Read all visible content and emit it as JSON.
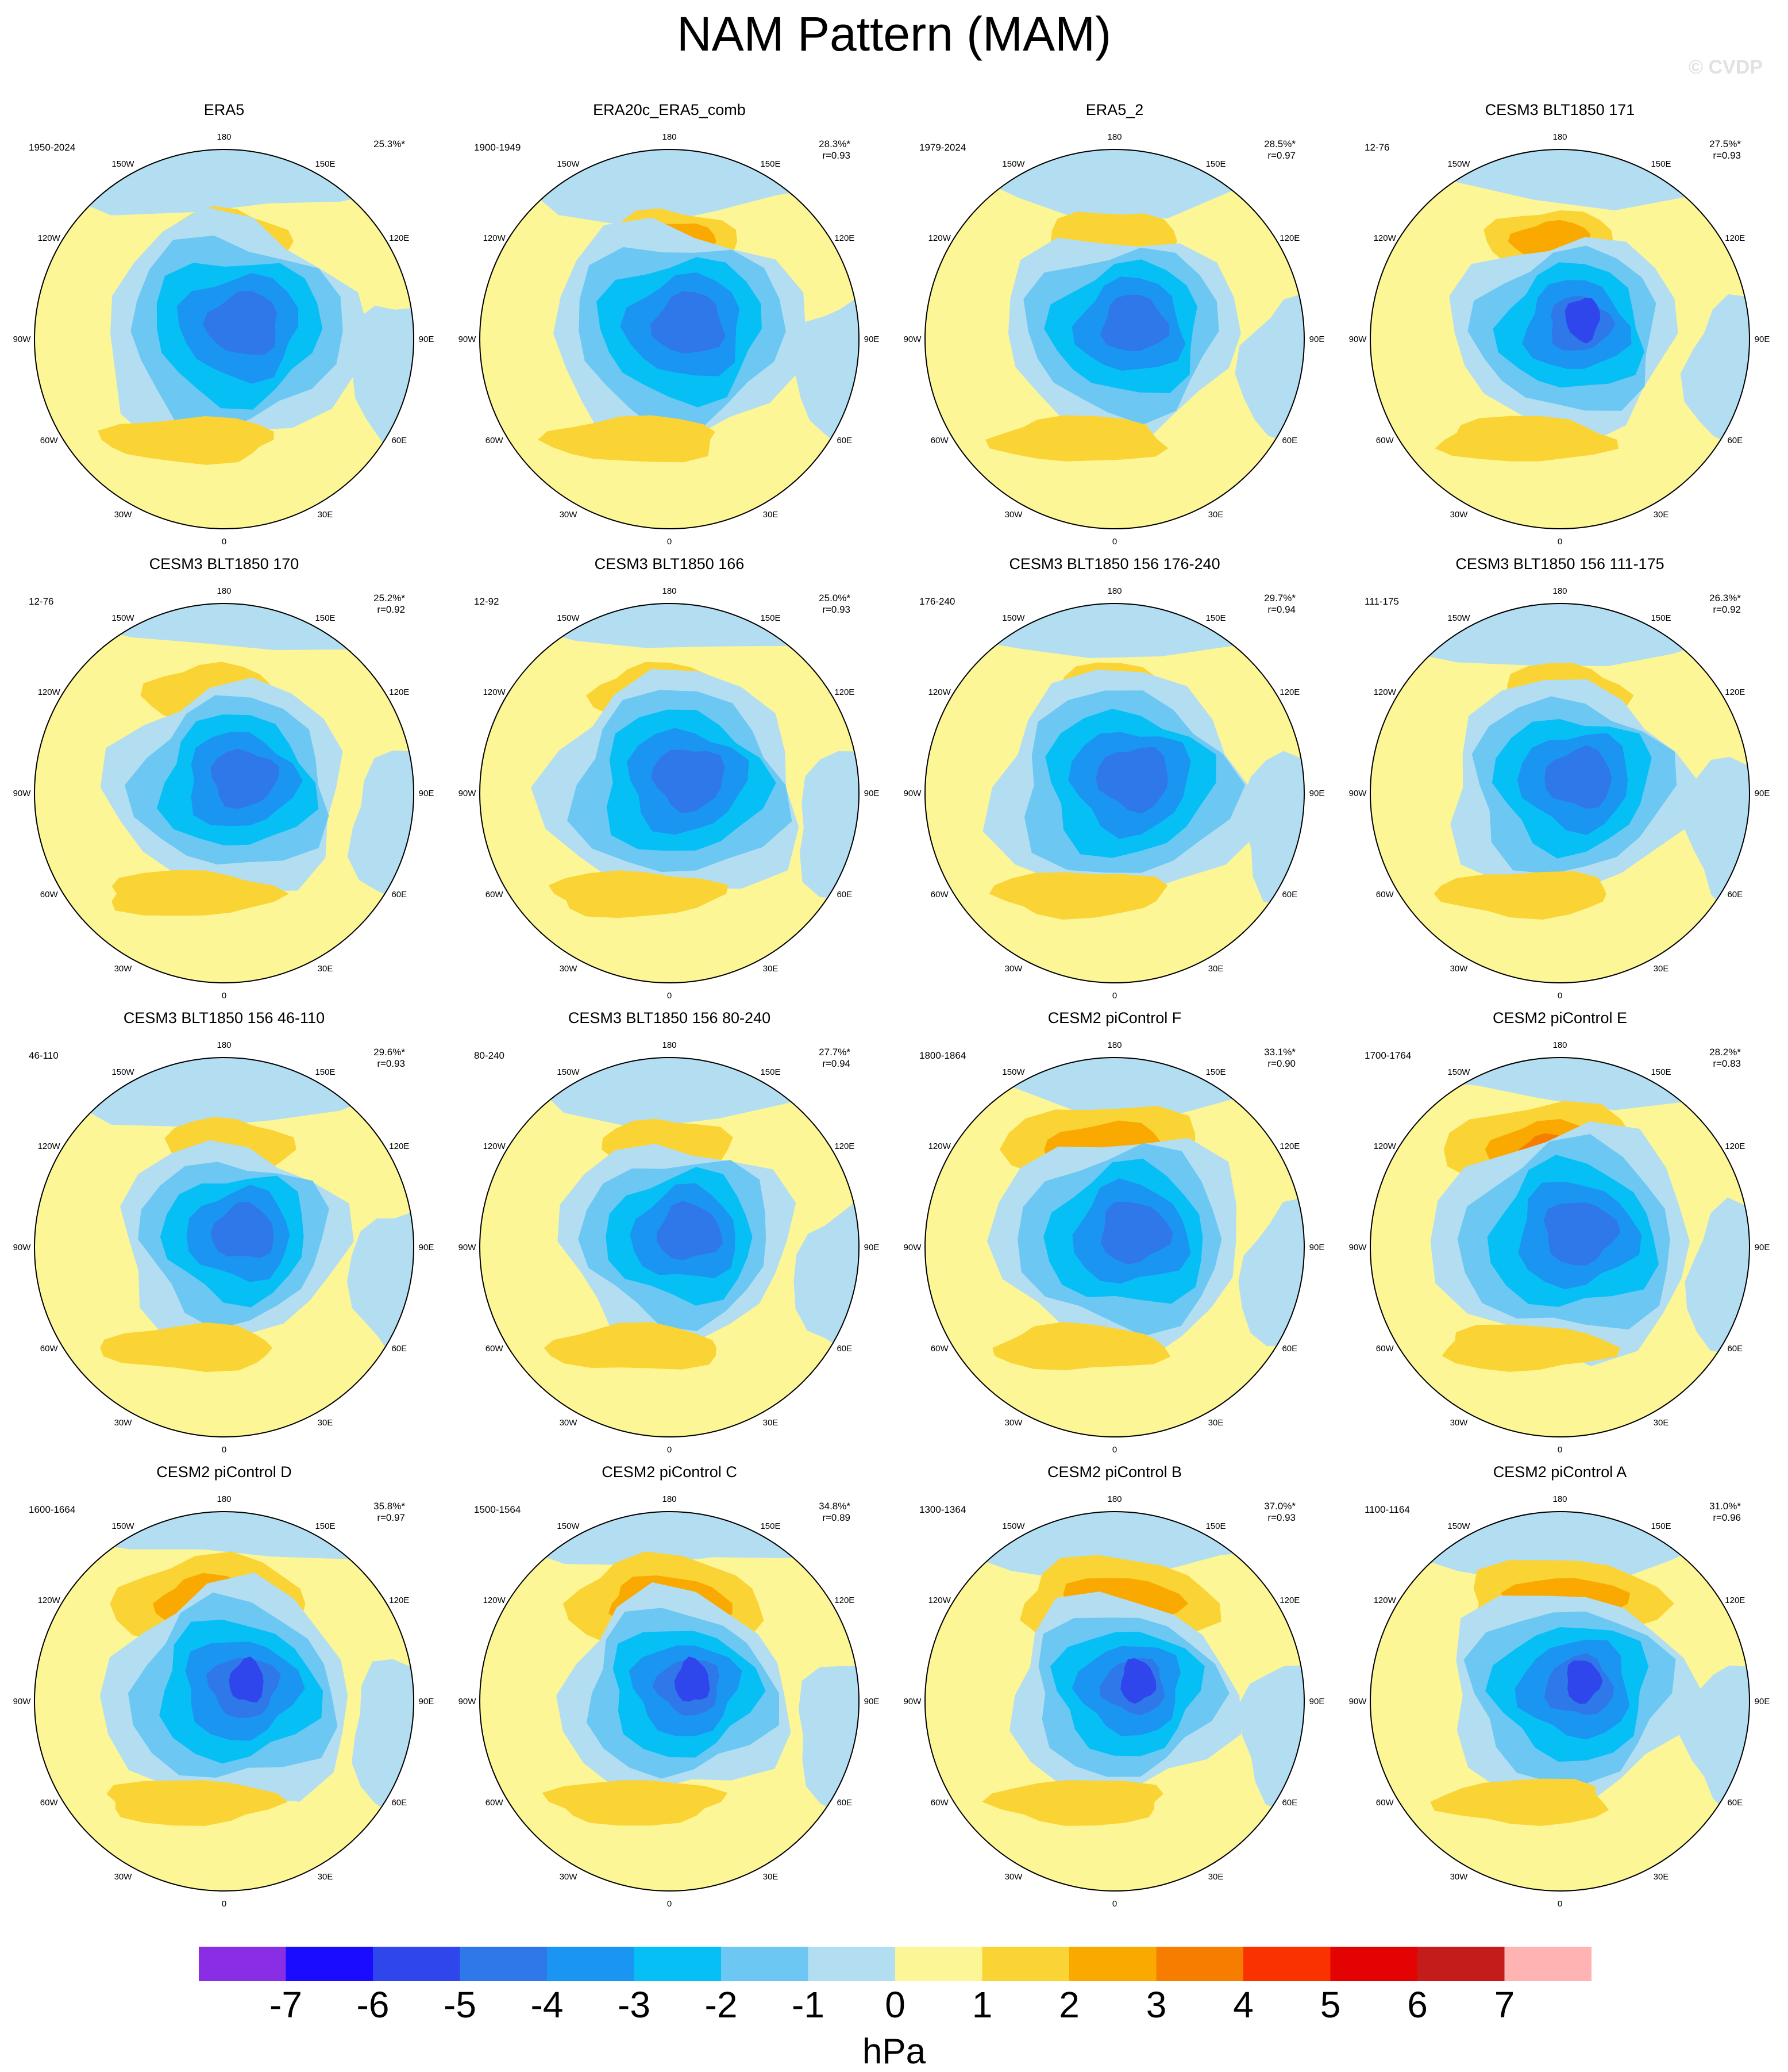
{
  "title": "NAM Pattern (MAM)",
  "copyright": "© CVDP",
  "colorbar": {
    "units": "hPa",
    "labels": [
      "-7",
      "-6",
      "-5",
      "-4",
      "-3",
      "-2",
      "-1",
      "0",
      "1",
      "2",
      "3",
      "4",
      "5",
      "6",
      "7"
    ],
    "colors": [
      "#8a2ee6",
      "#1a0dff",
      "#2e46eb",
      "#2f78ea",
      "#1b95f2",
      "#06c0f5",
      "#6cc8f2",
      "#b3def2",
      "#fdf696",
      "#fad334",
      "#faa900",
      "#f77d00",
      "#fa3200",
      "#e30303",
      "#c41b1b",
      "#ffb3b3"
    ]
  },
  "longitude_labels": [
    "180",
    "150E",
    "120E",
    "90E",
    "60E",
    "30E",
    "0",
    "30W",
    "60W",
    "90W",
    "120W",
    "150W"
  ],
  "panels": [
    {
      "name": "ERA5",
      "period": "1950-2024",
      "pct": "25.3%*",
      "r": ""
    },
    {
      "name": "ERA20c_ERA5_comb",
      "period": "1900-1949",
      "pct": "28.3%*",
      "r": "r=0.93"
    },
    {
      "name": "ERA5_2",
      "period": "1979-2024",
      "pct": "28.5%*",
      "r": "r=0.97"
    },
    {
      "name": "CESM3 BLT1850 171",
      "period": "12-76",
      "pct": "27.5%*",
      "r": "r=0.93"
    },
    {
      "name": "CESM3 BLT1850 170",
      "period": "12-76",
      "pct": "25.2%*",
      "r": "r=0.92"
    },
    {
      "name": "CESM3 BLT1850 166",
      "period": "12-92",
      "pct": "25.0%*",
      "r": "r=0.93"
    },
    {
      "name": "CESM3 BLT1850 156 176-240",
      "period": "176-240",
      "pct": "29.7%*",
      "r": "r=0.94"
    },
    {
      "name": "CESM3 BLT1850 156 111-175",
      "period": "111-175",
      "pct": "26.3%*",
      "r": "r=0.92"
    },
    {
      "name": "CESM3 BLT1850 156 46-110",
      "period": "46-110",
      "pct": "29.6%*",
      "r": "r=0.93"
    },
    {
      "name": "CESM3 BLT1850 156 80-240",
      "period": "80-240",
      "pct": "27.7%*",
      "r": "r=0.94"
    },
    {
      "name": "CESM2 piControl F",
      "period": "1800-1864",
      "pct": "33.1%*",
      "r": "r=0.90"
    },
    {
      "name": "CESM2 piControl E",
      "period": "1700-1764",
      "pct": "28.2%*",
      "r": "r=0.83"
    },
    {
      "name": "CESM2 piControl D",
      "period": "1600-1664",
      "pct": "35.8%*",
      "r": "r=0.97"
    },
    {
      "name": "CESM2 piControl C",
      "period": "1500-1564",
      "pct": "34.8%*",
      "r": "r=0.89"
    },
    {
      "name": "CESM2 piControl B",
      "period": "1300-1364",
      "pct": "37.0%*",
      "r": "r=0.93"
    },
    {
      "name": "CESM2 piControl A",
      "period": "1100-1164",
      "pct": "31.0%*",
      "r": "r=0.96"
    }
  ]
}
